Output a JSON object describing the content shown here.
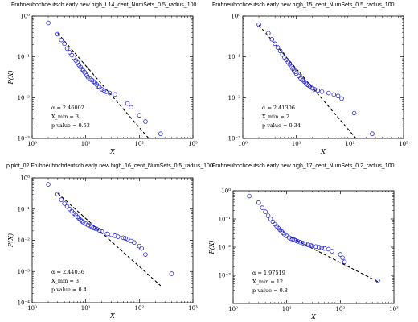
{
  "chart_data": [
    {
      "type": "scatter",
      "title": "Fruhneuhochdeutsch early new high_L14_cent_NumSets_0.5_radius_100",
      "xlabel": "X",
      "ylabel": "P(X)",
      "xscale": "log",
      "yscale": "log",
      "xlim": [
        1,
        1000
      ],
      "ylim": [
        0.001,
        1
      ],
      "x_ticks": [
        {
          "v": 1,
          "label": "10⁰"
        },
        {
          "v": 10,
          "label": "10¹"
        },
        {
          "v": 100,
          "label": "10²"
        },
        {
          "v": 1000,
          "label": "10³"
        }
      ],
      "y_ticks": [
        {
          "v": 0.001,
          "label": "10⁻³"
        },
        {
          "v": 0.01,
          "label": "10⁻²"
        },
        {
          "v": 0.1,
          "label": "10⁻¹"
        },
        {
          "v": 1,
          "label": "10⁰"
        }
      ],
      "points": {
        "x": [
          2,
          3,
          3.5,
          4,
          4.5,
          5,
          5.5,
          6,
          6.5,
          7,
          7.5,
          8,
          8.5,
          9,
          9.5,
          10,
          10.5,
          11,
          12,
          13,
          14,
          15,
          16,
          17,
          18,
          20,
          22,
          24,
          28,
          35,
          60,
          70,
          100,
          130,
          250
        ],
        "y": [
          0.68,
          0.36,
          0.26,
          0.21,
          0.16,
          0.13,
          0.11,
          0.095,
          0.082,
          0.072,
          0.063,
          0.056,
          0.05,
          0.046,
          0.042,
          0.038,
          0.035,
          0.032,
          0.029,
          0.027,
          0.025,
          0.023,
          0.021,
          0.019,
          0.018,
          0.016,
          0.015,
          0.014,
          0.013,
          0.012,
          0.0072,
          0.0058,
          0.0037,
          0.0026,
          0.0013
        ]
      },
      "fit_line": {
        "x": [
          3,
          150
        ],
        "y": [
          0.38,
          0.001
        ]
      },
      "annotations": [
        "α = 2.46002",
        "X_min = 3",
        "p value = 0.53"
      ]
    },
    {
      "type": "scatter",
      "title": "Fruhneuhochdeutsch early new high_15_cent_NumSets_0.5_radius_100",
      "xlabel": "X",
      "ylabel": "",
      "xscale": "log",
      "yscale": "log",
      "xlim": [
        1,
        1000
      ],
      "ylim": [
        0.001,
        1
      ],
      "x_ticks": [
        {
          "v": 1,
          "label": "10⁰"
        },
        {
          "v": 10,
          "label": "10¹"
        },
        {
          "v": 100,
          "label": "10²"
        },
        {
          "v": 1000,
          "label": "10³"
        }
      ],
      "y_ticks": [
        {
          "v": 0.001,
          "label": "10⁻³"
        },
        {
          "v": 0.01,
          "label": "10⁻²"
        },
        {
          "v": 0.1,
          "label": "10⁻¹"
        },
        {
          "v": 1,
          "label": "10⁰"
        }
      ],
      "points": {
        "x": [
          2,
          3,
          3.5,
          4,
          4.5,
          5,
          5.5,
          6,
          6.5,
          7,
          7.5,
          8,
          8.5,
          9,
          9.5,
          10,
          11,
          12,
          13,
          14,
          15,
          16,
          17,
          18,
          20,
          22,
          25,
          30,
          40,
          50,
          60,
          70,
          120,
          260
        ],
        "y": [
          0.62,
          0.38,
          0.27,
          0.21,
          0.17,
          0.14,
          0.115,
          0.098,
          0.085,
          0.074,
          0.066,
          0.058,
          0.052,
          0.047,
          0.043,
          0.039,
          0.034,
          0.03,
          0.027,
          0.025,
          0.023,
          0.021,
          0.02,
          0.019,
          0.017,
          0.016,
          0.015,
          0.014,
          0.013,
          0.012,
          0.011,
          0.0095,
          0.0042,
          0.0013
        ]
      },
      "fit_line": {
        "x": [
          2,
          130
        ],
        "y": [
          0.6,
          0.001
        ]
      },
      "annotations": [
        "α = 2.41306",
        "X_min = 2",
        "p value = 0.34"
      ]
    },
    {
      "type": "scatter",
      "title": "plplot_02 Fruhneuhochdeutsch early new high_16_cent_NumSets_0.5_radius_100",
      "xlabel": "X",
      "ylabel": "P(X)",
      "xscale": "log",
      "yscale": "log",
      "xlim": [
        1,
        1000
      ],
      "ylim": [
        0.0001,
        1
      ],
      "x_ticks": [
        {
          "v": 1,
          "label": "10⁰"
        },
        {
          "v": 10,
          "label": "10¹"
        },
        {
          "v": 100,
          "label": "10²"
        },
        {
          "v": 1000,
          "label": "10³"
        }
      ],
      "y_ticks": [
        {
          "v": 0.0001,
          "label": "10⁻⁴"
        },
        {
          "v": 0.001,
          "label": "10⁻³"
        },
        {
          "v": 0.01,
          "label": "10⁻²"
        },
        {
          "v": 0.1,
          "label": "10⁻¹"
        },
        {
          "v": 1,
          "label": "10⁰"
        }
      ],
      "points": {
        "x": [
          2,
          3,
          3.5,
          4,
          4.5,
          5,
          5.5,
          6,
          6.5,
          7,
          7.5,
          8,
          8.5,
          9,
          10,
          11,
          12,
          13,
          14,
          15,
          16,
          18,
          20,
          25,
          30,
          35,
          40,
          50,
          55,
          60,
          70,
          80,
          100,
          110,
          130,
          400
        ],
        "y": [
          0.62,
          0.3,
          0.2,
          0.15,
          0.12,
          0.1,
          0.085,
          0.073,
          0.064,
          0.056,
          0.05,
          0.045,
          0.041,
          0.038,
          0.034,
          0.031,
          0.029,
          0.027,
          0.025,
          0.024,
          0.023,
          0.021,
          0.019,
          0.016,
          0.015,
          0.014,
          0.013,
          0.012,
          0.0115,
          0.011,
          0.0095,
          0.0085,
          0.0065,
          0.0055,
          0.0035,
          0.00085
        ]
      },
      "fit_line": {
        "x": [
          3,
          250
        ],
        "y": [
          0.32,
          0.00035
        ]
      },
      "annotations": [
        "α = 2.44036",
        "X_min = 3",
        "p value = 0.4"
      ]
    },
    {
      "type": "scatter",
      "title": "Fruhneuhochdeutsch early new high_17_cent_NumSets_0.2_radius_100",
      "xlabel": "X",
      "ylabel": "P(X)",
      "xscale": "log",
      "yscale": "log",
      "xlim": [
        1,
        1000
      ],
      "ylim": [
        0.0001,
        1
      ],
      "x_ticks": [
        {
          "v": 1,
          "label": "10⁰"
        },
        {
          "v": 10,
          "label": "10¹"
        },
        {
          "v": 100,
          "label": "10²"
        },
        {
          "v": 1000,
          "label": "10³"
        }
      ],
      "y_ticks": [
        {
          "v": 0.001,
          "label": "10⁻³"
        },
        {
          "v": 0.01,
          "label": "10⁻²"
        },
        {
          "v": 0.1,
          "label": "10⁻¹"
        },
        {
          "v": 1,
          "label": "10⁰"
        }
      ],
      "points": {
        "x": [
          2,
          3,
          3.5,
          4,
          4.5,
          5,
          5.5,
          6,
          6.5,
          7,
          7.5,
          8,
          8.5,
          9,
          10,
          11,
          12,
          13,
          14,
          15,
          16,
          18,
          20,
          22,
          25,
          28,
          30,
          35,
          40,
          45,
          50,
          60,
          70,
          100,
          110,
          120,
          500
        ],
        "y": [
          0.65,
          0.38,
          0.25,
          0.18,
          0.13,
          0.1,
          0.08,
          0.065,
          0.055,
          0.047,
          0.041,
          0.036,
          0.032,
          0.029,
          0.025,
          0.022,
          0.02,
          0.019,
          0.018,
          0.017,
          0.016,
          0.015,
          0.014,
          0.013,
          0.012,
          0.0115,
          0.011,
          0.0105,
          0.01,
          0.0095,
          0.009,
          0.0085,
          0.0072,
          0.0055,
          0.0042,
          0.003,
          0.00065
        ]
      },
      "fit_line": {
        "x": [
          12,
          500
        ],
        "y": [
          0.022,
          0.0006
        ]
      },
      "annotations": [
        "α = 1.97519",
        "X_min = 12",
        "p-value = 0.8"
      ]
    }
  ]
}
